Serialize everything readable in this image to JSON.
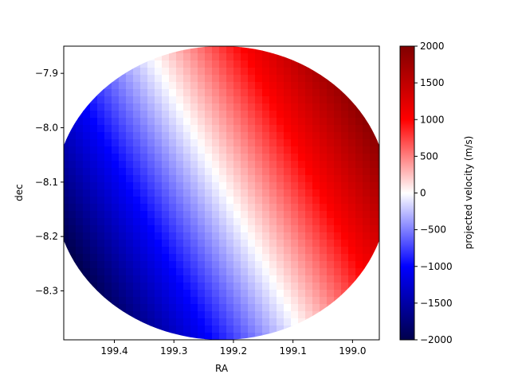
{
  "chart_data": {
    "type": "heatmap",
    "title": "",
    "xlabel": "RA",
    "ylabel": "dec",
    "xlim": [
      199.485,
      198.955
    ],
    "ylim": [
      -8.39,
      -7.85
    ],
    "x_ticks": [
      {
        "value": 199.4,
        "label": "199.4"
      },
      {
        "value": 199.3,
        "label": "199.3"
      },
      {
        "value": 199.2,
        "label": "199.2"
      },
      {
        "value": 199.1,
        "label": "199.1"
      },
      {
        "value": 199.0,
        "label": "199.0"
      }
    ],
    "y_ticks": [
      {
        "value": -7.9,
        "label": "−7.9"
      },
      {
        "value": -8.0,
        "label": "−8.0"
      },
      {
        "value": -8.1,
        "label": "−8.1"
      },
      {
        "value": -8.2,
        "label": "−8.2"
      },
      {
        "value": -8.3,
        "label": "−8.3"
      }
    ],
    "field": {
      "shape": "disk",
      "center": {
        "ra": 199.22,
        "dec": -8.12
      },
      "radius_ra_deg": 0.28,
      "radius_dec_deg": 0.27,
      "zero_velocity_line_through": [
        {
          "ra": 199.33,
          "dec": -7.88
        },
        {
          "ra": 199.1,
          "dec": -8.35
        }
      ],
      "velocity_range_in_disk": [
        -2000,
        2000
      ]
    },
    "colorbar": {
      "label": "projected velocity (m/s)",
      "vmin": -2000,
      "vmax": 2000,
      "colormap": "seismic",
      "colors": [
        "#00004c",
        "#0000ff",
        "#ffffff",
        "#ff0000",
        "#800000"
      ],
      "ticks": [
        {
          "value": 2000,
          "label": "2000"
        },
        {
          "value": 1500,
          "label": "1500"
        },
        {
          "value": 1000,
          "label": "1000"
        },
        {
          "value": 500,
          "label": "500"
        },
        {
          "value": 0,
          "label": "0"
        },
        {
          "value": -500,
          "label": "−500"
        },
        {
          "value": -1000,
          "label": "−1000"
        },
        {
          "value": -1500,
          "label": "−1500"
        },
        {
          "value": -2000,
          "label": "−2000"
        }
      ]
    },
    "grid": false,
    "legend": "none"
  }
}
